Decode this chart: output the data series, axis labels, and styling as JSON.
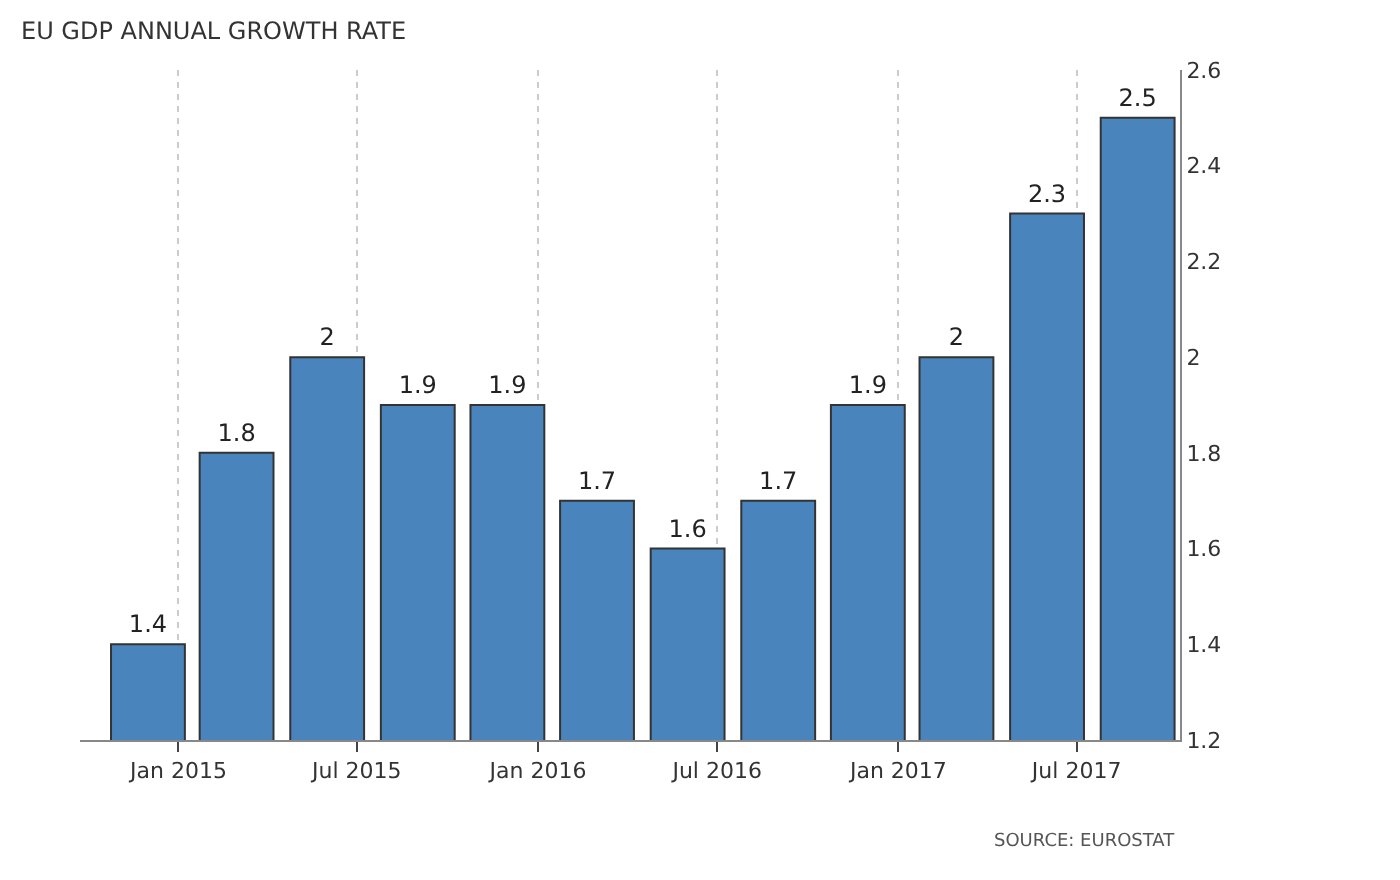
{
  "chart_data": {
    "type": "bar",
    "title": "EU GDP ANNUAL GROWTH RATE",
    "x": [
      "2014-12",
      "2015-03",
      "2015-06",
      "2015-09",
      "2015-12",
      "2016-03",
      "2016-06",
      "2016-09",
      "2016-12",
      "2017-03",
      "2017-06",
      "2017-09"
    ],
    "values": [
      1.4,
      1.8,
      2,
      1.9,
      1.9,
      1.7,
      1.6,
      1.7,
      1.9,
      2,
      2.3,
      2.5
    ],
    "color": "#4a84bd",
    "data_labels": true,
    "xlim": [
      "2014-09-23",
      "2017-10-14"
    ],
    "xticks": [
      {
        "value": "2015-01",
        "label": "Jan 2015"
      },
      {
        "value": "2015-07",
        "label": "Jul 2015"
      },
      {
        "value": "2016-01",
        "label": "Jan 2016"
      },
      {
        "value": "2016-07",
        "label": "Jul 2016"
      },
      {
        "value": "2017-01",
        "label": "Jan 2017"
      },
      {
        "value": "2017-07",
        "label": "Jul 2017"
      }
    ],
    "ylim": [
      1.2,
      2.6
    ],
    "yticks": [
      1.2,
      1.4,
      1.6,
      1.8,
      2,
      2.2,
      2.4,
      2.6
    ],
    "grid": "x",
    "annotations": [
      "SOURCE: EUROSTAT"
    ]
  }
}
